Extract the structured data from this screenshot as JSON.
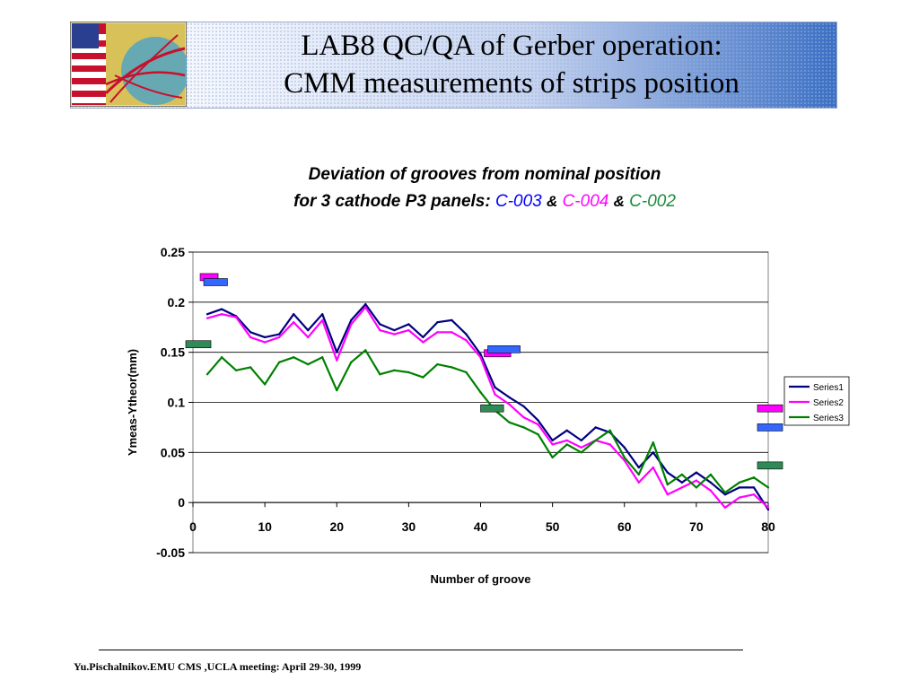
{
  "slide": {
    "title_line1": "LAB8 QC/QA of Gerber operation:",
    "title_line2": "CMM measurements of strips position",
    "logo_text": "CMS",
    "footer": "Yu.Pischalnikov.EMU CMS ,UCLA meeting:  April 29-30, 1999"
  },
  "chart_heading": {
    "line1": "Deviation of grooves from nominal position",
    "line2_prefix": "for 3 cathode P3 panels:",
    "p1": "C-003",
    "amp1": "&",
    "p2": "C-004",
    "amp2": "&",
    "p3": "C-002"
  },
  "chart_data": {
    "type": "line",
    "xlabel": "Number of groove",
    "ylabel": "Ymeas-Ytheor(mm)",
    "xlim": [
      0,
      80
    ],
    "ylim": [
      -0.05,
      0.25
    ],
    "x_ticks": [
      "0",
      "10",
      "20",
      "30",
      "40",
      "50",
      "60",
      "70",
      "80"
    ],
    "y_ticks": [
      "0.25",
      "0.2",
      "0.15",
      "0.1",
      "0.05",
      "0",
      "-0.05"
    ],
    "grid": "horizontal",
    "legend_position": "right",
    "colors": {
      "Series1": "#000080",
      "Series2": "#ff00ff",
      "Series3": "#008000"
    },
    "x": [
      2,
      4,
      6,
      8,
      10,
      12,
      14,
      16,
      18,
      20,
      22,
      24,
      26,
      28,
      30,
      32,
      34,
      36,
      38,
      40,
      42,
      44,
      46,
      48,
      50,
      52,
      54,
      56,
      58,
      60,
      62,
      64,
      66,
      68,
      70,
      72,
      74,
      76,
      78,
      80
    ],
    "series": [
      {
        "name": "Series1",
        "values": [
          0.188,
          0.193,
          0.186,
          0.17,
          0.165,
          0.168,
          0.188,
          0.172,
          0.188,
          0.15,
          0.182,
          0.198,
          0.178,
          0.172,
          0.178,
          0.165,
          0.18,
          0.182,
          0.168,
          0.148,
          0.115,
          0.105,
          0.096,
          0.082,
          0.062,
          0.072,
          0.062,
          0.075,
          0.07,
          0.055,
          0.035,
          0.05,
          0.03,
          0.02,
          0.03,
          0.02,
          0.008,
          0.015,
          0.015,
          -0.007
        ]
      },
      {
        "name": "Series2",
        "values": [
          0.184,
          0.188,
          0.185,
          0.165,
          0.16,
          0.165,
          0.18,
          0.165,
          0.182,
          0.142,
          0.178,
          0.195,
          0.172,
          0.168,
          0.172,
          0.16,
          0.17,
          0.17,
          0.162,
          0.145,
          0.108,
          0.098,
          0.085,
          0.078,
          0.058,
          0.062,
          0.055,
          0.062,
          0.058,
          0.042,
          0.02,
          0.035,
          0.008,
          0.015,
          0.022,
          0.012,
          -0.005,
          0.005,
          0.008,
          -0.005
        ]
      },
      {
        "name": "Series3",
        "values": [
          0.128,
          0.145,
          0.132,
          0.135,
          0.118,
          0.14,
          0.145,
          0.138,
          0.145,
          0.112,
          0.14,
          0.152,
          0.128,
          0.132,
          0.13,
          0.125,
          0.138,
          0.135,
          0.13,
          0.11,
          0.092,
          0.08,
          0.075,
          0.068,
          0.045,
          0.058,
          0.05,
          0.062,
          0.072,
          0.045,
          0.028,
          0.06,
          0.018,
          0.028,
          0.015,
          0.028,
          0.01,
          0.02,
          0.025,
          0.015
        ]
      }
    ],
    "annotations": [
      {
        "label": "C-004 marker",
        "x": 1.0,
        "x2": 3.5,
        "y": 0.225,
        "color": "#ff00ff"
      },
      {
        "label": "C-003 marker",
        "x": 1.5,
        "x2": 4.8,
        "y": 0.22,
        "color": "#3366ff"
      },
      {
        "label": "C-002 marker",
        "x": -1.0,
        "x2": 2.5,
        "y": 0.158,
        "color": "#2e8b57"
      },
      {
        "label": "C-004 marker",
        "x": 40.5,
        "x2": 44.2,
        "y": 0.149,
        "color": "#ff00ff"
      },
      {
        "label": "C-003 marker",
        "x": 41.0,
        "x2": 45.5,
        "y": 0.153,
        "color": "#3366ff"
      },
      {
        "label": "C-002 marker",
        "x": 40.0,
        "x2": 43.2,
        "y": 0.094,
        "color": "#2e8b57"
      },
      {
        "label": "C-004 marker",
        "x": 78.5,
        "x2": 82.0,
        "y": 0.094,
        "color": "#ff00ff"
      },
      {
        "label": "C-003 marker",
        "x": 78.5,
        "x2": 82.0,
        "y": 0.075,
        "color": "#3366ff"
      },
      {
        "label": "C-002 marker",
        "x": 78.5,
        "x2": 82.0,
        "y": 0.037,
        "color": "#2e8b57"
      }
    ]
  }
}
